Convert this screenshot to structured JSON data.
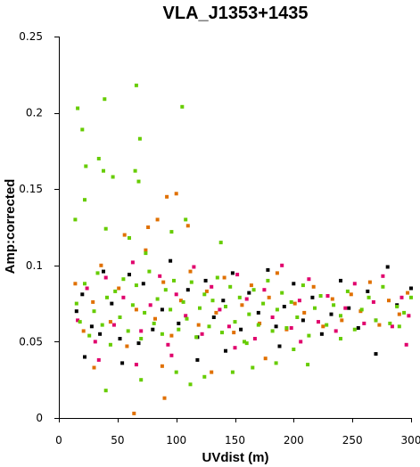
{
  "chart_data": {
    "type": "scatter",
    "title": "VLA_J1353+1435",
    "xlabel": "UVdist (m)",
    "ylabel": "Amp:corrected",
    "xlim": [
      0,
      300
    ],
    "ylim": [
      0,
      0.25
    ],
    "x_ticks": [
      0,
      50,
      100,
      150,
      200,
      250,
      300
    ],
    "y_ticks": [
      0,
      0.05,
      0.1,
      0.15,
      0.2,
      0.25
    ],
    "x_tick_labels": [
      "0",
      "50",
      "100",
      "150",
      "200",
      "250",
      "300"
    ],
    "y_tick_labels": [
      "0",
      "0.05",
      "0.1",
      "0.15",
      "0.2",
      "0.25"
    ],
    "grid": false,
    "legend": "none",
    "series": [
      {
        "color": "#000000",
        "points": [
          [
            15,
            0.07
          ],
          [
            20,
            0.081
          ],
          [
            28,
            0.06
          ],
          [
            35,
            0.055
          ],
          [
            38,
            0.096
          ],
          [
            45,
            0.075
          ],
          [
            52,
            0.052
          ],
          [
            60,
            0.094
          ],
          [
            68,
            0.049
          ],
          [
            72,
            0.088
          ],
          [
            80,
            0.058
          ],
          [
            88,
            0.071
          ],
          [
            95,
            0.103
          ],
          [
            102,
            0.062
          ],
          [
            110,
            0.084
          ],
          [
            118,
            0.053
          ],
          [
            125,
            0.09
          ],
          [
            132,
            0.066
          ],
          [
            140,
            0.077
          ],
          [
            148,
            0.095
          ],
          [
            155,
            0.058
          ],
          [
            162,
            0.082
          ],
          [
            170,
            0.069
          ],
          [
            178,
            0.097
          ],
          [
            185,
            0.06
          ],
          [
            192,
            0.073
          ],
          [
            200,
            0.088
          ],
          [
            208,
            0.064
          ],
          [
            216,
            0.079
          ],
          [
            224,
            0.055
          ],
          [
            232,
            0.068
          ],
          [
            240,
            0.09
          ],
          [
            247,
            0.072
          ],
          [
            255,
            0.059
          ],
          [
            263,
            0.083
          ],
          [
            270,
            0.064
          ],
          [
            280,
            0.099
          ],
          [
            288,
            0.074
          ],
          [
            300,
            0.085
          ],
          [
            22,
            0.04
          ],
          [
            54,
            0.036
          ],
          [
            118,
            0.038
          ],
          [
            142,
            0.044
          ],
          [
            188,
            0.047
          ],
          [
            270,
            0.042
          ]
        ]
      },
      {
        "color": "#e0006c",
        "points": [
          [
            16,
            0.064
          ],
          [
            24,
            0.085
          ],
          [
            31,
            0.05
          ],
          [
            40,
            0.092
          ],
          [
            47,
            0.061
          ],
          [
            55,
            0.079
          ],
          [
            63,
            0.102
          ],
          [
            70,
            0.057
          ],
          [
            78,
            0.074
          ],
          [
            86,
            0.093
          ],
          [
            93,
            0.048
          ],
          [
            100,
            0.081
          ],
          [
            108,
            0.067
          ],
          [
            115,
            0.099
          ],
          [
            122,
            0.055
          ],
          [
            130,
            0.086
          ],
          [
            137,
            0.071
          ],
          [
            145,
            0.06
          ],
          [
            152,
            0.094
          ],
          [
            160,
            0.078
          ],
          [
            167,
            0.052
          ],
          [
            175,
            0.084
          ],
          [
            182,
            0.066
          ],
          [
            190,
            0.1
          ],
          [
            198,
            0.059
          ],
          [
            205,
            0.077
          ],
          [
            213,
            0.091
          ],
          [
            221,
            0.063
          ],
          [
            229,
            0.08
          ],
          [
            236,
            0.057
          ],
          [
            244,
            0.072
          ],
          [
            252,
            0.088
          ],
          [
            260,
            0.062
          ],
          [
            268,
            0.076
          ],
          [
            276,
            0.093
          ],
          [
            284,
            0.06
          ],
          [
            292,
            0.079
          ],
          [
            298,
            0.067
          ],
          [
            34,
            0.038
          ],
          [
            66,
            0.035
          ],
          [
            96,
            0.041
          ],
          [
            150,
            0.046
          ],
          [
            206,
            0.05
          ],
          [
            296,
            0.048
          ]
        ]
      },
      {
        "color": "#e07000",
        "points": [
          [
            14,
            0.088
          ],
          [
            21,
            0.057
          ],
          [
            29,
            0.076
          ],
          [
            36,
            0.1
          ],
          [
            44,
            0.063
          ],
          [
            51,
            0.085
          ],
          [
            58,
            0.047
          ],
          [
            66,
            0.071
          ],
          [
            74,
            0.11
          ],
          [
            82,
            0.065
          ],
          [
            89,
            0.089
          ],
          [
            96,
            0.054
          ],
          [
            104,
            0.077
          ],
          [
            112,
            0.096
          ],
          [
            119,
            0.061
          ],
          [
            126,
            0.083
          ],
          [
            134,
            0.069
          ],
          [
            141,
            0.092
          ],
          [
            149,
            0.056
          ],
          [
            156,
            0.074
          ],
          [
            164,
            0.087
          ],
          [
            171,
            0.062
          ],
          [
            179,
            0.079
          ],
          [
            186,
            0.095
          ],
          [
            194,
            0.058
          ],
          [
            201,
            0.075
          ],
          [
            209,
            0.069
          ],
          [
            217,
            0.086
          ],
          [
            225,
            0.06
          ],
          [
            233,
            0.078
          ],
          [
            241,
            0.064
          ],
          [
            249,
            0.081
          ],
          [
            257,
            0.07
          ],
          [
            265,
            0.089
          ],
          [
            273,
            0.061
          ],
          [
            281,
            0.077
          ],
          [
            290,
            0.068
          ],
          [
            297,
            0.082
          ],
          [
            64,
            0.003
          ],
          [
            90,
            0.013
          ],
          [
            100,
            0.147
          ],
          [
            92,
            0.145
          ],
          [
            56,
            0.12
          ],
          [
            76,
            0.125
          ],
          [
            84,
            0.13
          ],
          [
            110,
            0.126
          ],
          [
            30,
            0.033
          ],
          [
            88,
            0.034
          ],
          [
            130,
            0.03
          ],
          [
            176,
            0.039
          ]
        ]
      },
      {
        "color": "#66cc00",
        "points": [
          [
            15,
            0.075
          ],
          [
            18,
            0.063
          ],
          [
            22,
            0.088
          ],
          [
            26,
            0.054
          ],
          [
            30,
            0.07
          ],
          [
            33,
            0.095
          ],
          [
            37,
            0.061
          ],
          [
            41,
            0.079
          ],
          [
            44,
            0.048
          ],
          [
            48,
            0.083
          ],
          [
            52,
            0.066
          ],
          [
            55,
            0.091
          ],
          [
            59,
            0.057
          ],
          [
            63,
            0.074
          ],
          [
            66,
            0.087
          ],
          [
            70,
            0.052
          ],
          [
            73,
            0.069
          ],
          [
            77,
            0.096
          ],
          [
            81,
            0.062
          ],
          [
            84,
            0.078
          ],
          [
            88,
            0.055
          ],
          [
            91,
            0.084
          ],
          [
            95,
            0.071
          ],
          [
            98,
            0.09
          ],
          [
            102,
            0.058
          ],
          [
            106,
            0.076
          ],
          [
            109,
            0.065
          ],
          [
            113,
            0.089
          ],
          [
            117,
            0.053
          ],
          [
            120,
            0.072
          ],
          [
            124,
            0.081
          ],
          [
            128,
            0.06
          ],
          [
            131,
            0.077
          ],
          [
            135,
            0.092
          ],
          [
            139,
            0.056
          ],
          [
            142,
            0.073
          ],
          [
            146,
            0.086
          ],
          [
            150,
            0.063
          ],
          [
            154,
            0.079
          ],
          [
            158,
            0.05
          ],
          [
            162,
            0.068
          ],
          [
            166,
            0.084
          ],
          [
            170,
            0.061
          ],
          [
            174,
            0.075
          ],
          [
            178,
            0.09
          ],
          [
            182,
            0.057
          ],
          [
            186,
            0.071
          ],
          [
            190,
            0.082
          ],
          [
            194,
            0.059
          ],
          [
            198,
            0.076
          ],
          [
            203,
            0.066
          ],
          [
            208,
            0.087
          ],
          [
            213,
            0.054
          ],
          [
            218,
            0.072
          ],
          [
            223,
            0.08
          ],
          [
            228,
            0.061
          ],
          [
            234,
            0.074
          ],
          [
            240,
            0.067
          ],
          [
            246,
            0.083
          ],
          [
            252,
            0.058
          ],
          [
            258,
            0.071
          ],
          [
            264,
            0.079
          ],
          [
            270,
            0.064
          ],
          [
            276,
            0.086
          ],
          [
            282,
            0.062
          ],
          [
            288,
            0.073
          ],
          [
            294,
            0.069
          ],
          [
            300,
            0.079
          ],
          [
            16,
            0.203
          ],
          [
            20,
            0.189
          ],
          [
            39,
            0.209
          ],
          [
            66,
            0.218
          ],
          [
            105,
            0.204
          ],
          [
            23,
            0.165
          ],
          [
            34,
            0.17
          ],
          [
            38,
            0.162
          ],
          [
            65,
            0.162
          ],
          [
            68,
            0.155
          ],
          [
            69,
            0.183
          ],
          [
            46,
            0.158
          ],
          [
            22,
            0.143
          ],
          [
            108,
            0.13
          ],
          [
            14,
            0.13
          ],
          [
            40,
            0.124
          ],
          [
            96,
            0.122
          ],
          [
            60,
            0.118
          ],
          [
            138,
            0.115
          ],
          [
            74,
            0.108
          ],
          [
            40,
            0.018
          ],
          [
            112,
            0.022
          ],
          [
            124,
            0.027
          ],
          [
            148,
            0.03
          ],
          [
            165,
            0.033
          ],
          [
            212,
            0.035
          ],
          [
            200,
            0.045
          ],
          [
            160,
            0.049
          ],
          [
            240,
            0.052
          ],
          [
            290,
            0.06
          ],
          [
            185,
            0.036
          ],
          [
            100,
            0.03
          ],
          [
            70,
            0.025
          ]
        ]
      }
    ]
  }
}
